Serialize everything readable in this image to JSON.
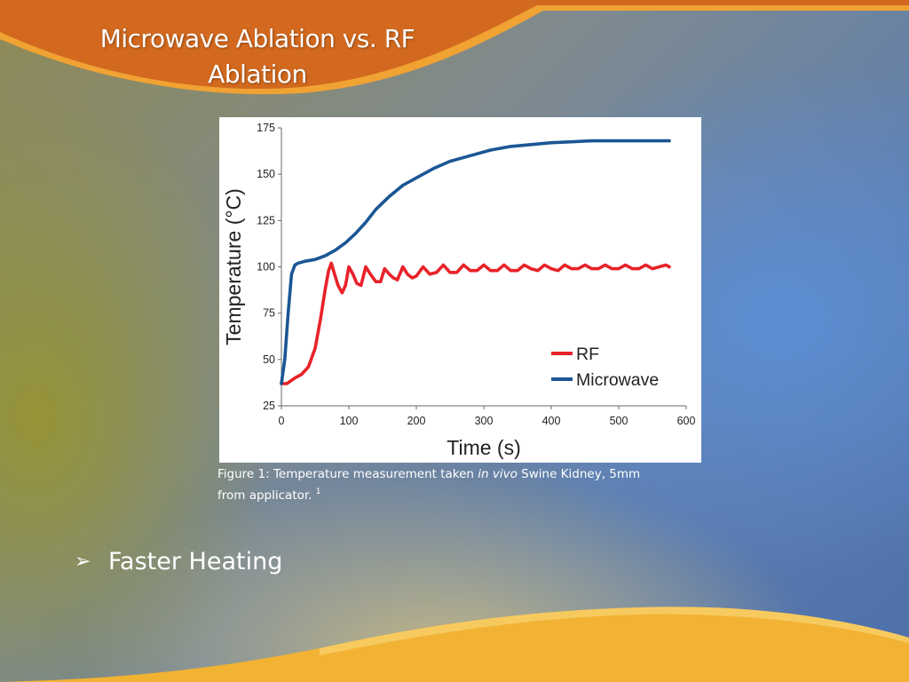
{
  "slide": {
    "title_line1": "Microwave Ablation vs. RF",
    "title_line2": "Ablation",
    "caption": {
      "prefix": "Figure 1: Temperature measurement taken ",
      "italic": "in vivo",
      "suffix": " Swine Kidney, 5mm",
      "line2": "from applicator. ",
      "footnote": "1"
    },
    "bullet": {
      "icon": "arrow-bullet-icon",
      "symbol": "➢",
      "text": "Faster Heating"
    },
    "colors": {
      "header_orange": "#d2691e",
      "footer_gold": "#f2b233",
      "rf_line": "#e8222a",
      "microwave_line": "#1b5694"
    }
  },
  "chart_data": {
    "type": "line",
    "title": "",
    "xlabel": "Time (s)",
    "ylabel": "Temperature (°C)",
    "xlim": [
      0,
      600
    ],
    "ylim": [
      25,
      175
    ],
    "x_ticks": [
      "0",
      "100",
      "200",
      "300",
      "400",
      "500",
      "600"
    ],
    "y_ticks": [
      "25",
      "50",
      "75",
      "100",
      "125",
      "150",
      "175"
    ],
    "grid": false,
    "legend_position": "bottom-right",
    "series": [
      {
        "name": "RF",
        "color": "#e8222a",
        "x": [
          0,
          8,
          20,
          30,
          40,
          50,
          58,
          65,
          70,
          74,
          78,
          84,
          90,
          95,
          100,
          106,
          112,
          118,
          125,
          132,
          140,
          147,
          153,
          160,
          166,
          172,
          180,
          187,
          194,
          200,
          210,
          220,
          230,
          240,
          250,
          260,
          270,
          280,
          290,
          300,
          310,
          320,
          330,
          340,
          350,
          360,
          370,
          380,
          390,
          400,
          410,
          420,
          430,
          440,
          450,
          460,
          470,
          480,
          490,
          500,
          510,
          520,
          530,
          540,
          550,
          560,
          570,
          575
        ],
        "y": [
          37,
          37,
          40,
          42,
          46,
          56,
          72,
          88,
          98,
          102,
          97,
          90,
          86,
          90,
          100,
          96,
          91,
          90,
          100,
          96,
          92,
          92,
          99,
          96,
          94,
          93,
          100,
          96,
          94,
          95,
          100,
          96,
          97,
          101,
          97,
          97,
          101,
          98,
          98,
          101,
          98,
          98,
          101,
          98,
          98,
          101,
          99,
          98,
          101,
          99,
          98,
          101,
          99,
          99,
          101,
          99,
          99,
          101,
          99,
          99,
          101,
          99,
          99,
          101,
          99,
          100,
          101,
          100
        ]
      },
      {
        "name": "Microwave",
        "color": "#1b5694",
        "x": [
          0,
          5,
          10,
          15,
          20,
          25,
          35,
          50,
          65,
          80,
          95,
          110,
          125,
          140,
          160,
          180,
          200,
          225,
          250,
          280,
          310,
          340,
          370,
          400,
          430,
          460,
          490,
          520,
          550,
          575
        ],
        "y": [
          37,
          50,
          75,
          96,
          101,
          102,
          103,
          104,
          106,
          109,
          113,
          118,
          124,
          131,
          138,
          144,
          148,
          153,
          157,
          160,
          163,
          165,
          166,
          167,
          167.5,
          168,
          168,
          168,
          168,
          168
        ]
      }
    ]
  }
}
